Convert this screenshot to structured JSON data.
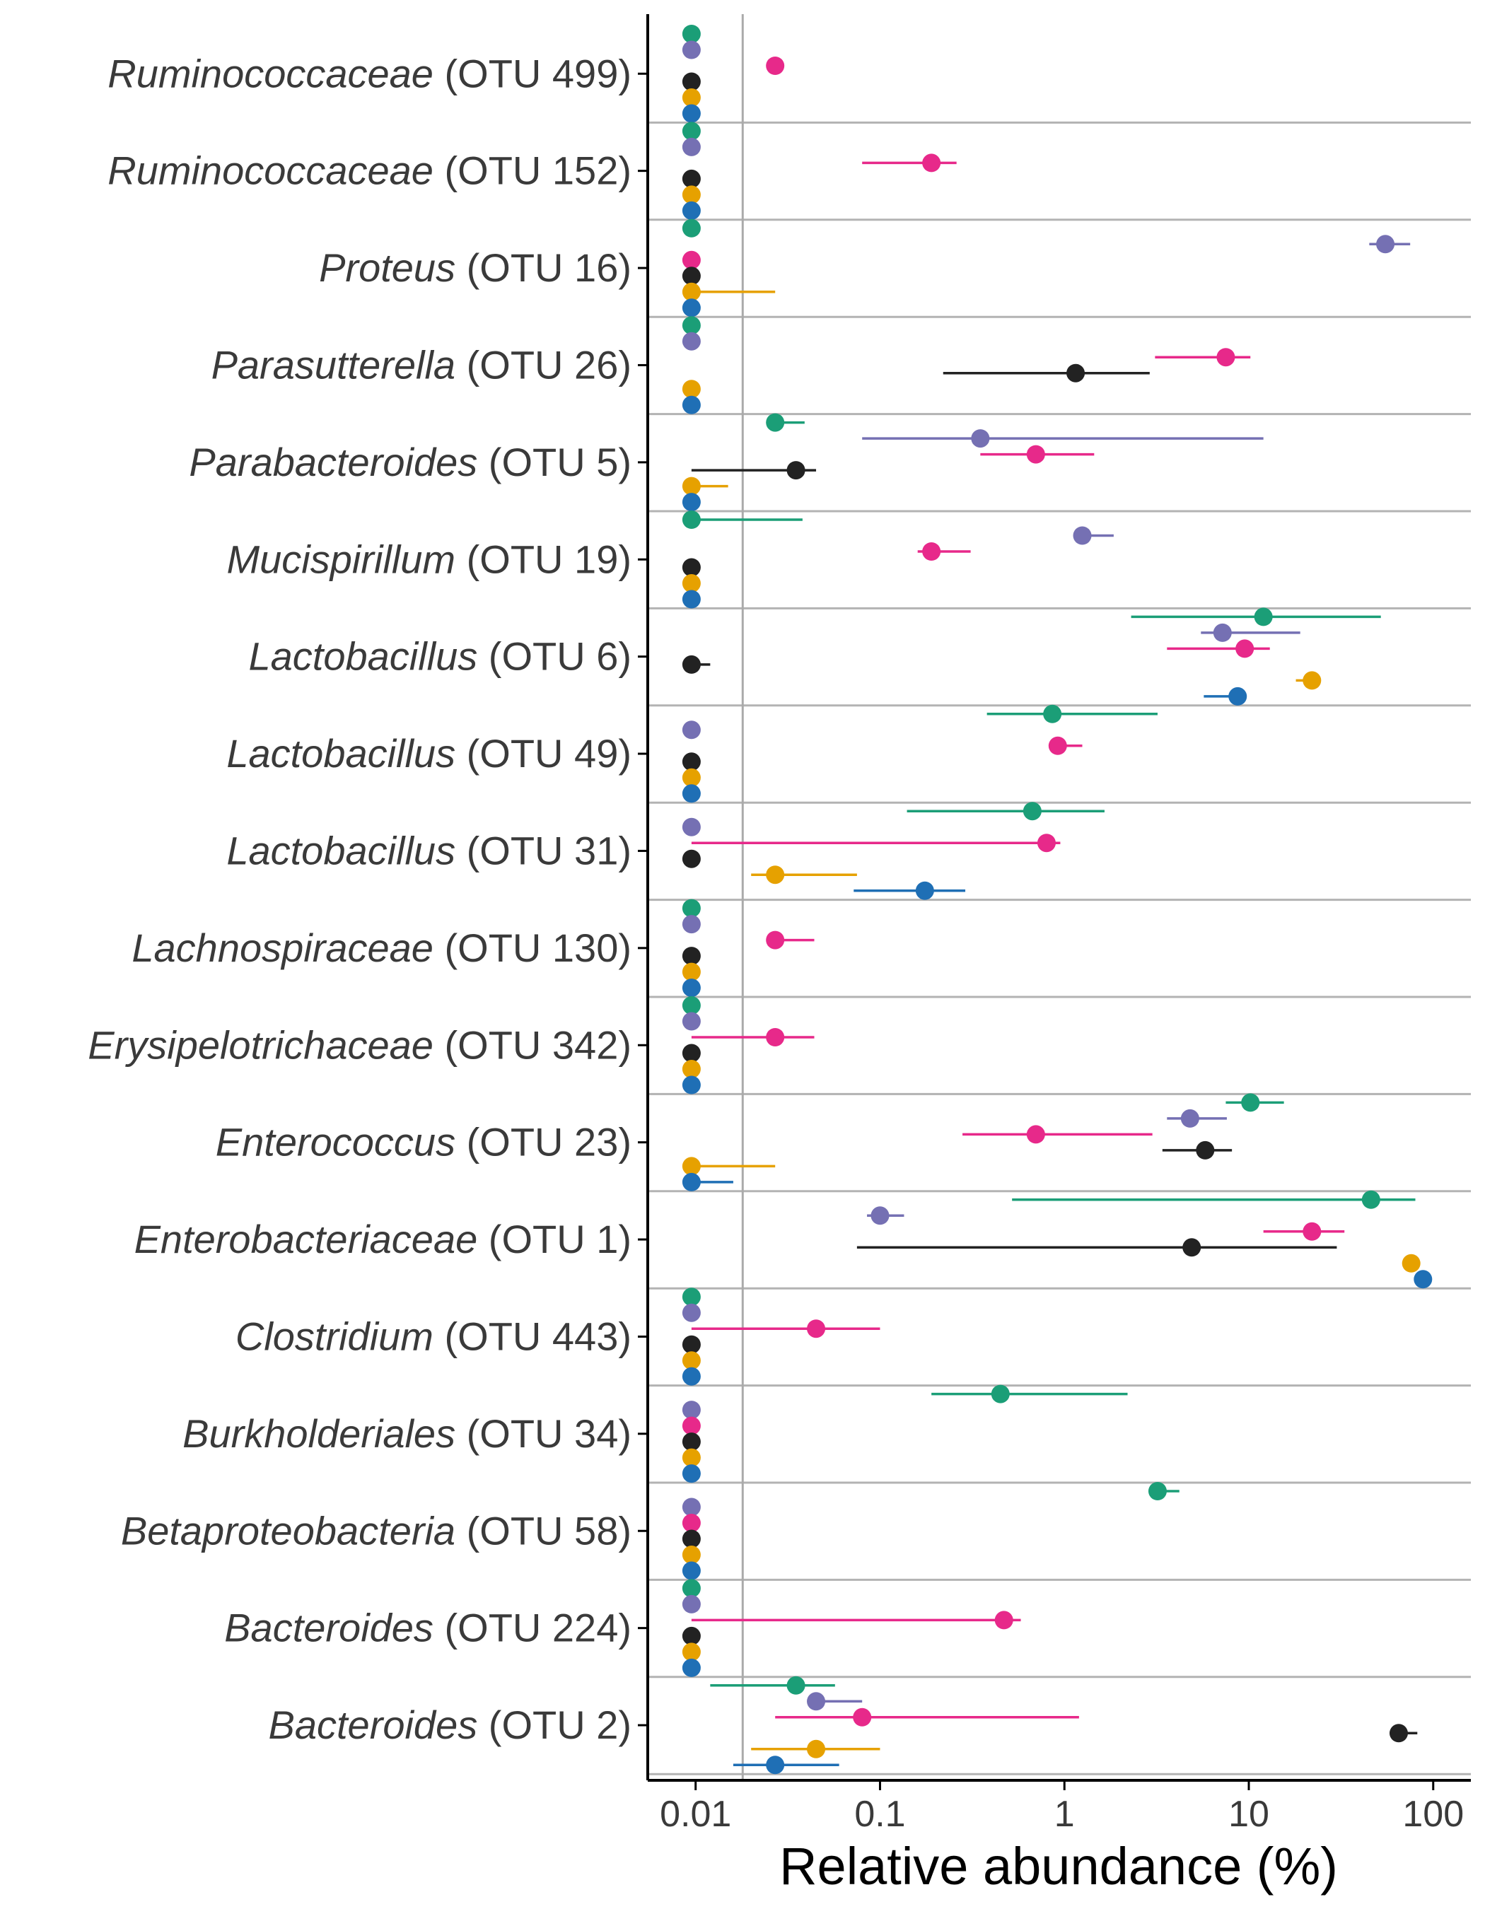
{
  "chart_data": {
    "type": "dot-and-range",
    "xlabel": "Relative abundance (%)",
    "x_scale": "log10",
    "xlim": [
      0.0055,
      160
    ],
    "x_ticks": [
      {
        "value": 0.01,
        "label": "0.01"
      },
      {
        "value": 0.1,
        "label": "0.1"
      },
      {
        "value": 1,
        "label": "1"
      },
      {
        "value": 10,
        "label": "10"
      },
      {
        "value": 100,
        "label": "100"
      }
    ],
    "detection_limit": 0.018,
    "grid": false,
    "legend": "none",
    "group_colors": [
      "#1b9e77",
      "#7570b3",
      "#e7298a",
      "#222222",
      "#e6a100",
      "#1f6fb5"
    ],
    "rows": [
      {
        "genus": "Ruminococcaceae",
        "otu": " (OTU 499)",
        "points": [
          [
            0,
            0.0095,
            null,
            null
          ],
          [
            1,
            0.0095,
            null,
            null
          ],
          [
            2,
            0.027,
            null,
            null
          ],
          [
            3,
            0.0095,
            null,
            null
          ],
          [
            4,
            0.0095,
            null,
            null
          ],
          [
            5,
            0.0095,
            null,
            null
          ]
        ]
      },
      {
        "genus": "Ruminococcaceae",
        "otu": " (OTU 152)",
        "points": [
          [
            0,
            0.0095,
            null,
            null
          ],
          [
            1,
            0.0095,
            null,
            null
          ],
          [
            2,
            0.19,
            0.08,
            0.26
          ],
          [
            3,
            0.0095,
            null,
            null
          ],
          [
            4,
            0.0095,
            null,
            null
          ],
          [
            5,
            0.0095,
            null,
            null
          ]
        ]
      },
      {
        "genus": "Proteus",
        "otu": " (OTU 16)",
        "points": [
          [
            0,
            0.0095,
            null,
            null
          ],
          [
            1,
            55,
            45,
            75
          ],
          [
            2,
            0.0095,
            null,
            null
          ],
          [
            3,
            0.0095,
            null,
            null
          ],
          [
            4,
            0.0095,
            null,
            0.027
          ],
          [
            5,
            0.0095,
            null,
            null
          ]
        ]
      },
      {
        "genus": "Parasutterella",
        "otu": " (OTU 26)",
        "points": [
          [
            0,
            0.0095,
            null,
            null
          ],
          [
            1,
            0.0095,
            null,
            null
          ],
          [
            2,
            7.5,
            3.1,
            10.2
          ],
          [
            3,
            1.15,
            0.22,
            2.9
          ],
          [
            4,
            0.0095,
            null,
            null
          ],
          [
            5,
            0.0095,
            null,
            null
          ]
        ]
      },
      {
        "genus": "Parabacteroides",
        "otu": " (OTU 5)",
        "points": [
          [
            0,
            0.027,
            null,
            0.039
          ],
          [
            1,
            0.35,
            0.08,
            12
          ],
          [
            2,
            0.7,
            0.35,
            1.45
          ],
          [
            3,
            0.035,
            0.0095,
            0.045
          ],
          [
            4,
            0.0095,
            null,
            0.015
          ],
          [
            5,
            0.0095,
            null,
            null
          ]
        ]
      },
      {
        "genus": "Mucispirillum",
        "otu": " (OTU 19)",
        "points": [
          [
            0,
            0.0095,
            null,
            0.038
          ],
          [
            1,
            1.25,
            null,
            1.85
          ],
          [
            2,
            0.19,
            0.16,
            0.31
          ],
          [
            3,
            0.0095,
            null,
            null
          ],
          [
            4,
            0.0095,
            null,
            null
          ],
          [
            5,
            0.0095,
            null,
            null
          ]
        ]
      },
      {
        "genus": "Lactobacillus",
        "otu": " (OTU 6)",
        "points": [
          [
            0,
            12,
            2.3,
            52
          ],
          [
            1,
            7.2,
            5.5,
            19
          ],
          [
            2,
            9.5,
            3.6,
            13
          ],
          [
            3,
            0.0095,
            null,
            0.012
          ],
          [
            4,
            22,
            18,
            null
          ],
          [
            5,
            8.7,
            5.7,
            null
          ]
        ]
      },
      {
        "genus": "Lactobacillus",
        "otu": " (OTU 49)",
        "points": [
          [
            0,
            0.86,
            0.38,
            3.2
          ],
          [
            1,
            0.0095,
            null,
            null
          ],
          [
            2,
            0.92,
            null,
            1.25
          ],
          [
            3,
            0.0095,
            null,
            null
          ],
          [
            4,
            0.0095,
            null,
            null
          ],
          [
            5,
            0.0095,
            null,
            null
          ]
        ]
      },
      {
        "genus": "Lactobacillus",
        "otu": " (OTU 31)",
        "points": [
          [
            0,
            0.67,
            0.14,
            1.65
          ],
          [
            1,
            0.0095,
            null,
            null
          ],
          [
            2,
            0.8,
            0.0095,
            0.95
          ],
          [
            3,
            0.0095,
            null,
            null
          ],
          [
            4,
            0.027,
            0.02,
            0.075
          ],
          [
            5,
            0.175,
            0.072,
            0.29
          ]
        ]
      },
      {
        "genus": "Lachnospiraceae",
        "otu": " (OTU 130)",
        "points": [
          [
            0,
            0.0095,
            null,
            null
          ],
          [
            1,
            0.0095,
            null,
            null
          ],
          [
            2,
            0.027,
            null,
            0.044
          ],
          [
            3,
            0.0095,
            null,
            null
          ],
          [
            4,
            0.0095,
            null,
            null
          ],
          [
            5,
            0.0095,
            null,
            null
          ]
        ]
      },
      {
        "genus": "Erysipelotrichaceae",
        "otu": " (OTU 342)",
        "points": [
          [
            0,
            0.0095,
            null,
            null
          ],
          [
            1,
            0.0095,
            null,
            null
          ],
          [
            2,
            0.027,
            0.0095,
            0.044
          ],
          [
            3,
            0.0095,
            null,
            null
          ],
          [
            4,
            0.0095,
            null,
            null
          ],
          [
            5,
            0.0095,
            null,
            null
          ]
        ]
      },
      {
        "genus": "Enterococcus",
        "otu": " (OTU 23)",
        "points": [
          [
            0,
            10.2,
            7.5,
            15.5
          ],
          [
            1,
            4.8,
            3.6,
            7.6
          ],
          [
            2,
            0.7,
            0.28,
            3
          ],
          [
            3,
            5.8,
            3.4,
            8.1
          ],
          [
            4,
            0.0095,
            null,
            0.027
          ],
          [
            5,
            0.0095,
            null,
            0.016
          ]
        ]
      },
      {
        "genus": "Enterobacteriaceae",
        "otu": " (OTU 1)",
        "points": [
          [
            0,
            46,
            0.52,
            80
          ],
          [
            1,
            0.1,
            0.085,
            0.135
          ],
          [
            2,
            22,
            12,
            33
          ],
          [
            3,
            4.9,
            0.075,
            30
          ],
          [
            4,
            76,
            null,
            null
          ],
          [
            5,
            88,
            null,
            null
          ]
        ]
      },
      {
        "genus": "Clostridium",
        "otu": " (OTU 443)",
        "points": [
          [
            0,
            0.0095,
            null,
            null
          ],
          [
            1,
            0.0095,
            null,
            null
          ],
          [
            2,
            0.045,
            0.0095,
            0.1
          ],
          [
            3,
            0.0095,
            null,
            null
          ],
          [
            4,
            0.0095,
            null,
            null
          ],
          [
            5,
            0.0095,
            null,
            null
          ]
        ]
      },
      {
        "genus": "Burkholderiales",
        "otu": " (OTU 34)",
        "points": [
          [
            0,
            0.45,
            0.19,
            2.2
          ],
          [
            1,
            0.0095,
            null,
            null
          ],
          [
            2,
            0.0095,
            null,
            null
          ],
          [
            3,
            0.0095,
            null,
            null
          ],
          [
            4,
            0.0095,
            null,
            null
          ],
          [
            5,
            0.0095,
            null,
            null
          ]
        ]
      },
      {
        "genus": "Betaproteobacteria",
        "otu": " (OTU 58)",
        "points": [
          [
            0,
            3.2,
            null,
            4.2
          ],
          [
            1,
            0.0095,
            null,
            null
          ],
          [
            2,
            0.0095,
            null,
            null
          ],
          [
            3,
            0.0095,
            null,
            null
          ],
          [
            4,
            0.0095,
            null,
            null
          ],
          [
            5,
            0.0095,
            null,
            null
          ]
        ]
      },
      {
        "genus": "Bacteroides",
        "otu": " (OTU 224)",
        "points": [
          [
            0,
            0.0095,
            null,
            null
          ],
          [
            1,
            0.0095,
            null,
            null
          ],
          [
            2,
            0.47,
            0.0095,
            0.58
          ],
          [
            3,
            0.0095,
            null,
            null
          ],
          [
            4,
            0.0095,
            null,
            null
          ],
          [
            5,
            0.0095,
            null,
            null
          ]
        ]
      },
      {
        "genus": "Bacteroides",
        "otu": " (OTU 2)",
        "points": [
          [
            0,
            0.035,
            0.012,
            0.057
          ],
          [
            1,
            0.045,
            null,
            0.08
          ],
          [
            2,
            0.08,
            0.027,
            1.2
          ],
          [
            3,
            65,
            null,
            82
          ],
          [
            4,
            0.045,
            0.02,
            0.1
          ],
          [
            5,
            0.027,
            0.016,
            0.06
          ]
        ]
      }
    ]
  }
}
